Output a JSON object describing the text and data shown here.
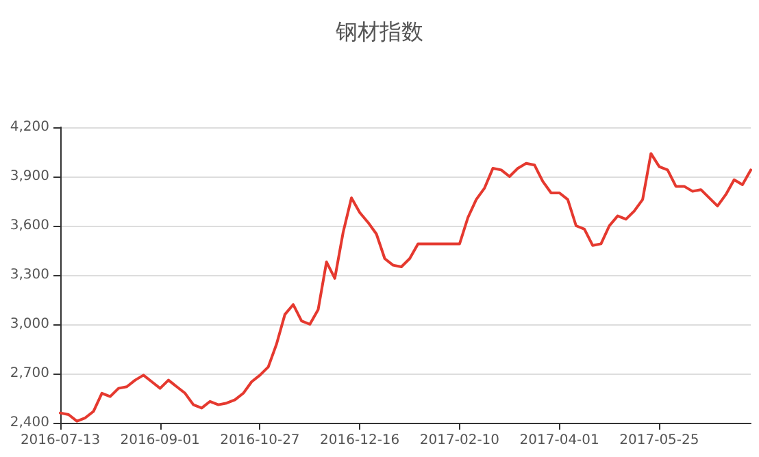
{
  "chart_data": {
    "type": "line",
    "title": "钢材指数",
    "categories": [
      "2016-07-13",
      null,
      null,
      null,
      null,
      null,
      null,
      null,
      null,
      null,
      null,
      null,
      "2016-09-01",
      null,
      null,
      null,
      null,
      null,
      null,
      null,
      null,
      null,
      null,
      null,
      "2016-10-27",
      null,
      null,
      null,
      null,
      null,
      null,
      null,
      null,
      null,
      null,
      null,
      "2016-12-16",
      null,
      null,
      null,
      null,
      null,
      null,
      null,
      null,
      null,
      null,
      null,
      "2017-02-10",
      null,
      null,
      null,
      null,
      null,
      null,
      null,
      null,
      null,
      null,
      null,
      "2017-04-01",
      null,
      null,
      null,
      null,
      null,
      null,
      null,
      null,
      null,
      null,
      null,
      "2017-05-25",
      null,
      null,
      null,
      null,
      null,
      null,
      null,
      null,
      null,
      null,
      null
    ],
    "series": [
      {
        "color": "#e5392f",
        "values": [
          2460,
          2450,
          2410,
          2430,
          2470,
          2580,
          2560,
          2610,
          2620,
          2660,
          2690,
          2650,
          2610,
          2660,
          2620,
          2580,
          2510,
          2490,
          2530,
          2510,
          2520,
          2540,
          2580,
          2650,
          2690,
          2740,
          2880,
          3060,
          3120,
          3020,
          3000,
          3090,
          3380,
          3280,
          3560,
          3770,
          3680,
          3620,
          3550,
          3400,
          3360,
          3350,
          3400,
          3490,
          3490,
          3490,
          3490,
          3490,
          3490,
          3650,
          3760,
          3830,
          3950,
          3940,
          3900,
          3950,
          3980,
          3970,
          3870,
          3800,
          3800,
          3760,
          3600,
          3580,
          3480,
          3490,
          3600,
          3660,
          3640,
          3690,
          3760,
          4040,
          3960,
          3940,
          3840,
          3840,
          3810,
          3820,
          3770,
          3720,
          3790,
          3880,
          3850,
          3940
        ]
      }
    ],
    "ylim": [
      2400,
      4200
    ],
    "yticks": [
      {
        "value": 2400,
        "label": "2,400"
      },
      {
        "value": 2700,
        "label": "2,700"
      },
      {
        "value": 3000,
        "label": "3,000"
      },
      {
        "value": 3300,
        "label": "3,300"
      },
      {
        "value": 3600,
        "label": "3,600"
      },
      {
        "value": 3900,
        "label": "3,900"
      },
      {
        "value": 4200,
        "label": "4,200"
      }
    ],
    "grid": "y",
    "line_style": "solid"
  }
}
